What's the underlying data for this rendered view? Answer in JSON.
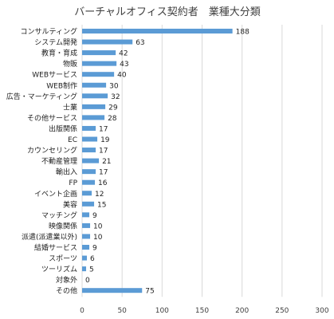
{
  "chart_data": {
    "type": "bar",
    "orientation": "horizontal",
    "title": "バーチャルオフィス契約者　業種大分類",
    "categories": [
      "コンサルティング",
      "システム開発",
      "教育・育成",
      "物販",
      "WEBサービス",
      "WEB制作",
      "広告・マーケティング",
      "士業",
      "その他サービス",
      "出版関係",
      "EC",
      "カウンセリング",
      "不動産管理",
      "輸出入",
      "FP",
      "イベント企画",
      "美容",
      "マッチング",
      "映像関係",
      "派遣(派遣業以外)",
      "結婚サービス",
      "スポーツ",
      "ツーリズム",
      "対象外",
      "その他"
    ],
    "values": [
      188,
      63,
      42,
      43,
      40,
      30,
      32,
      29,
      28,
      17,
      19,
      17,
      21,
      17,
      16,
      12,
      15,
      9,
      10,
      10,
      9,
      6,
      5,
      0,
      75
    ],
    "xlim": [
      0,
      300
    ],
    "xticks": [
      0,
      50,
      100,
      150,
      200,
      250,
      300
    ],
    "grid": true,
    "bar_color": "#5b9bd5"
  }
}
